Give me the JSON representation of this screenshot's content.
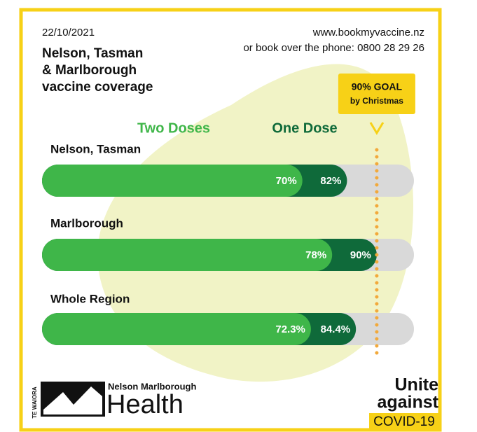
{
  "chart_data": {
    "type": "bar",
    "date": "22/10/2021",
    "title": [
      "Nelson, Tasman",
      "& Marlborough",
      "vaccine coverage"
    ],
    "contact": [
      "www.bookmyvaccine.nz",
      "or book over the phone: 0800 28 29 26"
    ],
    "categories": [
      "Nelson, Tasman",
      "Marlborough",
      "Whole Region"
    ],
    "series": [
      {
        "name": "One Dose",
        "color": "#0f6a3a",
        "values": [
          82,
          90,
          84.4
        ],
        "value_labels": [
          "82%",
          "90%",
          "84.4%"
        ]
      },
      {
        "name": "Two Doses",
        "color": "#3fb649",
        "values": [
          70,
          78,
          72.3
        ],
        "value_labels": [
          "70%",
          "78%",
          "72.3%"
        ]
      }
    ],
    "xlim": [
      0,
      100
    ],
    "track_color": "#d9d9d9",
    "goal": {
      "value": 90,
      "label": "90% GOAL",
      "sublabel": "by Christmas",
      "color": "#f2a93b"
    },
    "logo": [
      "TE WAIORA",
      "Nelson Marlborough",
      "Health"
    ],
    "campaign": [
      "Unite",
      "against",
      "COVID-19"
    ]
  }
}
